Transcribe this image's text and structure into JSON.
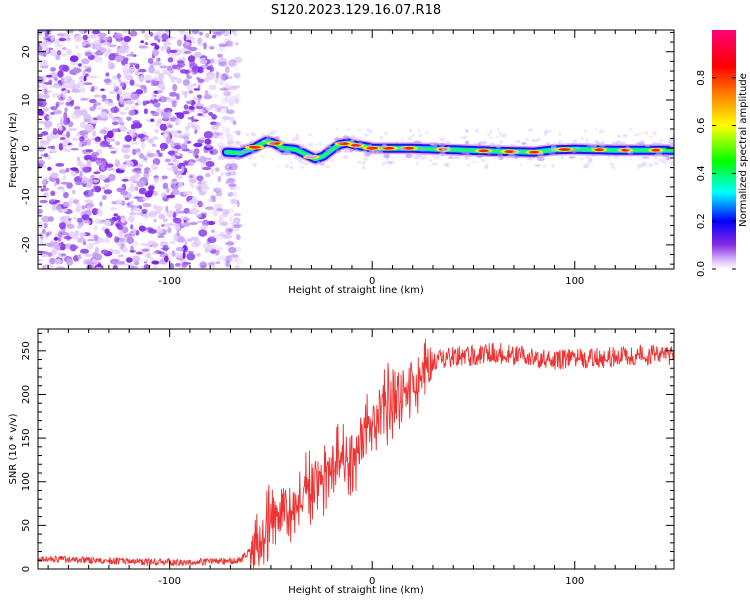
{
  "title": "S120.2023.129.16.07.R18",
  "colors": {
    "snr_line": "#ee3333",
    "scatter_purple": "#7a1ee8",
    "frame": "#000000"
  },
  "chart_data": [
    {
      "type": "heatmap",
      "xlabel": "Height of straight line (km)",
      "ylabel": "Frequency (Hz)",
      "xlim": [
        -165,
        149
      ],
      "ylim": [
        -25,
        24.5
      ],
      "x_ticks": [
        -100,
        0,
        100
      ],
      "y_ticks": [
        -20,
        -10,
        0,
        10,
        20
      ],
      "grid": false,
      "noise_region_x": [
        -165,
        -72
      ],
      "signal_center_track": {
        "x": [
          -72,
          -65,
          -58,
          -52,
          -48,
          -44,
          -38,
          -33,
          -28,
          -24,
          -20,
          -16,
          -12,
          -8,
          -4,
          0,
          20,
          40,
          60,
          80,
          90,
          100,
          120,
          149
        ],
        "freq": [
          -0.8,
          -1.0,
          0.2,
          1.5,
          1.0,
          0.0,
          -0.2,
          -1.2,
          -2.2,
          -1.6,
          -0.3,
          0.8,
          1.1,
          0.6,
          0.4,
          0.0,
          0.0,
          -0.3,
          -0.6,
          -0.8,
          -0.3,
          -0.2,
          -0.4,
          -0.4
        ]
      },
      "colorbar": {
        "label": "Normalized spectral amplitude",
        "range": [
          0.0,
          1.0
        ],
        "ticks": [
          "0.0",
          "0.2",
          "0.4",
          "0.6",
          "0.8"
        ],
        "tick_values": [
          0.0,
          0.2,
          0.4,
          0.6,
          0.8
        ]
      }
    },
    {
      "type": "line",
      "xlabel": "Height of straight line (km)",
      "ylabel": "SNR (10 * v/v)",
      "xlim": [
        -165,
        149
      ],
      "ylim": [
        0,
        275
      ],
      "x_ticks": [
        -100,
        0,
        100
      ],
      "y_ticks": [
        0,
        50,
        100,
        150,
        200,
        250
      ],
      "grid": false,
      "series": [
        {
          "trend_x": [
            -165,
            -140,
            -110,
            -80,
            -65,
            -58,
            -50,
            -42,
            -35,
            -28,
            -20,
            -12,
            -5,
            5,
            12,
            20,
            25,
            30,
            40,
            50,
            60,
            70,
            80,
            90,
            100,
            110,
            120,
            130,
            140,
            149
          ],
          "trend_y": [
            12,
            10,
            8,
            8,
            10,
            25,
            55,
            75,
            90,
            100,
            115,
            130,
            145,
            180,
            200,
            215,
            228,
            238,
            243,
            245,
            248,
            245,
            242,
            240,
            240,
            242,
            243,
            244,
            245,
            245
          ]
        }
      ]
    }
  ]
}
